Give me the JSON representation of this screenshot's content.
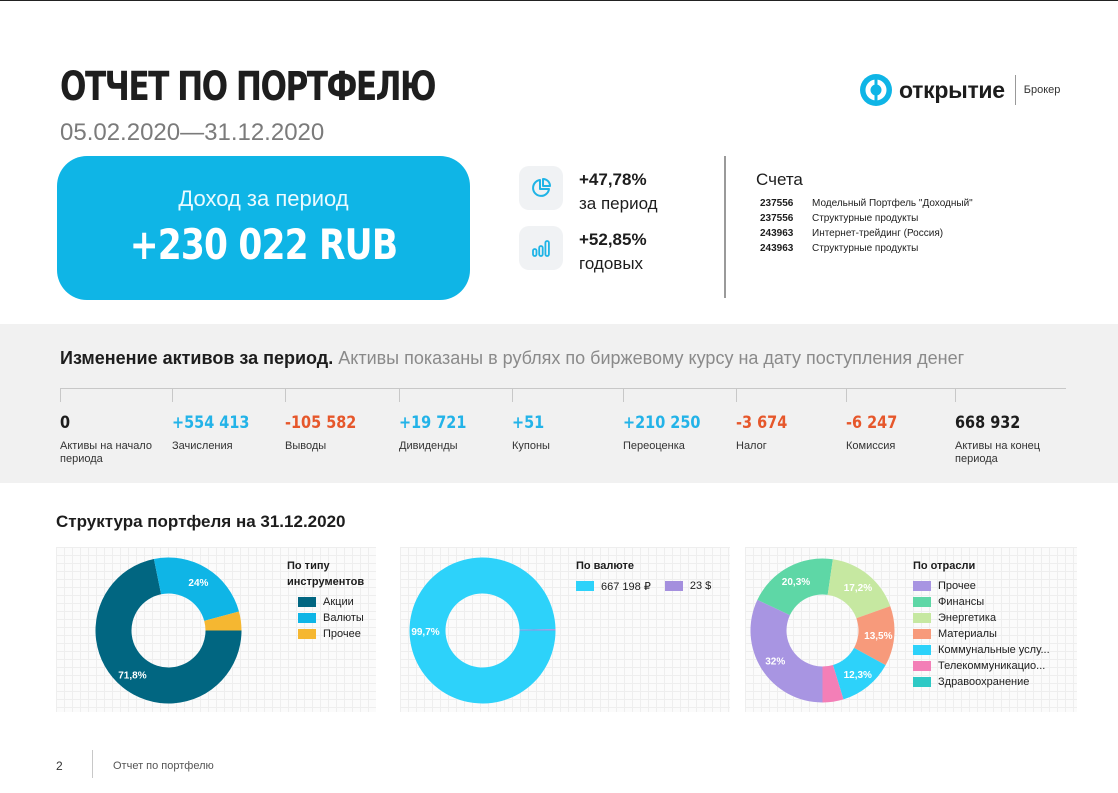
{
  "header": {
    "title": "ОТЧЕТ ПО ПОРТФЕЛЮ",
    "date_range": "05.02.2020—31.12.2020",
    "brand_name": "ОТКРЫТИЕ",
    "brand_sub": "Брокер"
  },
  "income": {
    "label": "Доход за период",
    "value": "+230 022 RUB"
  },
  "stats": [
    {
      "value": "+47,78%",
      "label": "за период",
      "icon": "pie-chart-icon"
    },
    {
      "value": "+52,85%",
      "label": "годовых",
      "icon": "bar-chart-icon"
    }
  ],
  "accounts": {
    "title": "Счета",
    "rows": [
      {
        "number": "237556",
        "name": "Модельный Портфель \"Доходный\""
      },
      {
        "number": "237556",
        "name": "Структурные продукты"
      },
      {
        "number": "243963",
        "name": "Интернет-трейдинг (Россия)"
      },
      {
        "number": "243963",
        "name": "Структурные продукты"
      }
    ]
  },
  "changes": {
    "title_bold": "Изменение активов за период.",
    "title_note": " Активы показаны в рублях по биржевому курсу на дату поступления денег",
    "items": [
      {
        "value": "0",
        "label": "Активы на начало периода",
        "tone": "neu"
      },
      {
        "value": "+554 413",
        "label": "Зачисления",
        "tone": "pos"
      },
      {
        "value": "-105 582",
        "label": "Выводы",
        "tone": "neg"
      },
      {
        "value": "+19 721",
        "label": "Дивиденды",
        "tone": "pos"
      },
      {
        "value": "+51",
        "label": "Купоны",
        "tone": "pos"
      },
      {
        "value": "+210 250",
        "label": "Переоценка",
        "tone": "pos"
      },
      {
        "value": "-3 674",
        "label": "Налог",
        "tone": "neg"
      },
      {
        "value": "-6 247",
        "label": "Комиссия",
        "tone": "neg"
      },
      {
        "value": "668 932",
        "label": "Активы на  конец периода",
        "tone": "neu"
      }
    ]
  },
  "structure_title": "Структура портфеля на 31.12.2020",
  "chart_data": [
    {
      "type": "pie",
      "donut": true,
      "title": "По типу инструментов",
      "categories": [
        "Акции",
        "Валюты",
        "Прочее"
      ],
      "values": [
        71.8,
        24.0,
        4.2
      ],
      "labels": [
        "71,8%",
        "24%",
        ""
      ],
      "colors": [
        "#016681",
        "#0fb5e6",
        "#f5b731"
      ]
    },
    {
      "type": "pie",
      "donut": true,
      "title": "По валюте",
      "categories": [
        "667 198 ₽",
        "23 $"
      ],
      "values": [
        99.7,
        0.3
      ],
      "labels": [
        "99,7%",
        ""
      ],
      "colors": [
        "#2dd2fa",
        "#a48fde"
      ]
    },
    {
      "type": "pie",
      "donut": true,
      "title": "По отрасли",
      "categories": [
        "Прочее",
        "Финансы",
        "Энергетика",
        "Материалы",
        "Коммунальные услу...",
        "Телекоммуникацио...",
        "Здравоохранение"
      ],
      "values": [
        32.0,
        20.3,
        17.2,
        13.5,
        12.3,
        4.7,
        0.0
      ],
      "labels": [
        "32%",
        "20,3%",
        "17,2%",
        "13,5%",
        "12,3%",
        "",
        ""
      ],
      "colors": [
        "#a895e2",
        "#5ed7a6",
        "#c6e8a1",
        "#f79a7b",
        "#2dd2fa",
        "#f37fb7",
        "#2ec9c5"
      ]
    }
  ],
  "footer": {
    "page": "2",
    "text": "Отчет по портфелю"
  }
}
